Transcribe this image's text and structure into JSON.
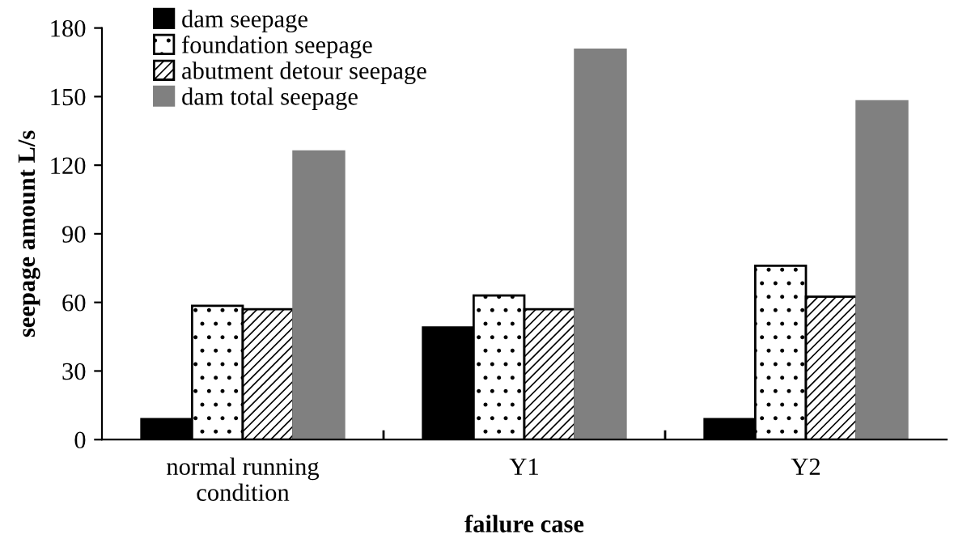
{
  "chart_data": {
    "type": "bar",
    "xlabel": "failure case",
    "ylabel": "seepage amount L/s",
    "categories": [
      "normal running\ncondition",
      "Y1",
      "Y2"
    ],
    "series": [
      {
        "name": "dam seepage",
        "color": "#000000",
        "values": [
          9,
          49,
          9
        ]
      },
      {
        "name": "foundation seepage",
        "values": [
          58.5,
          63,
          76
        ]
      },
      {
        "name": "abutment detour seepage",
        "values": [
          57,
          57,
          62.5
        ]
      },
      {
        "name": "dam total seepage",
        "color": "#808080",
        "values": [
          126,
          170.5,
          148
        ]
      }
    ],
    "ylim": [
      0,
      180
    ],
    "yticks": [
      0,
      30,
      60,
      90,
      120,
      150,
      180
    ],
    "grid": false,
    "legend": "top left"
  }
}
